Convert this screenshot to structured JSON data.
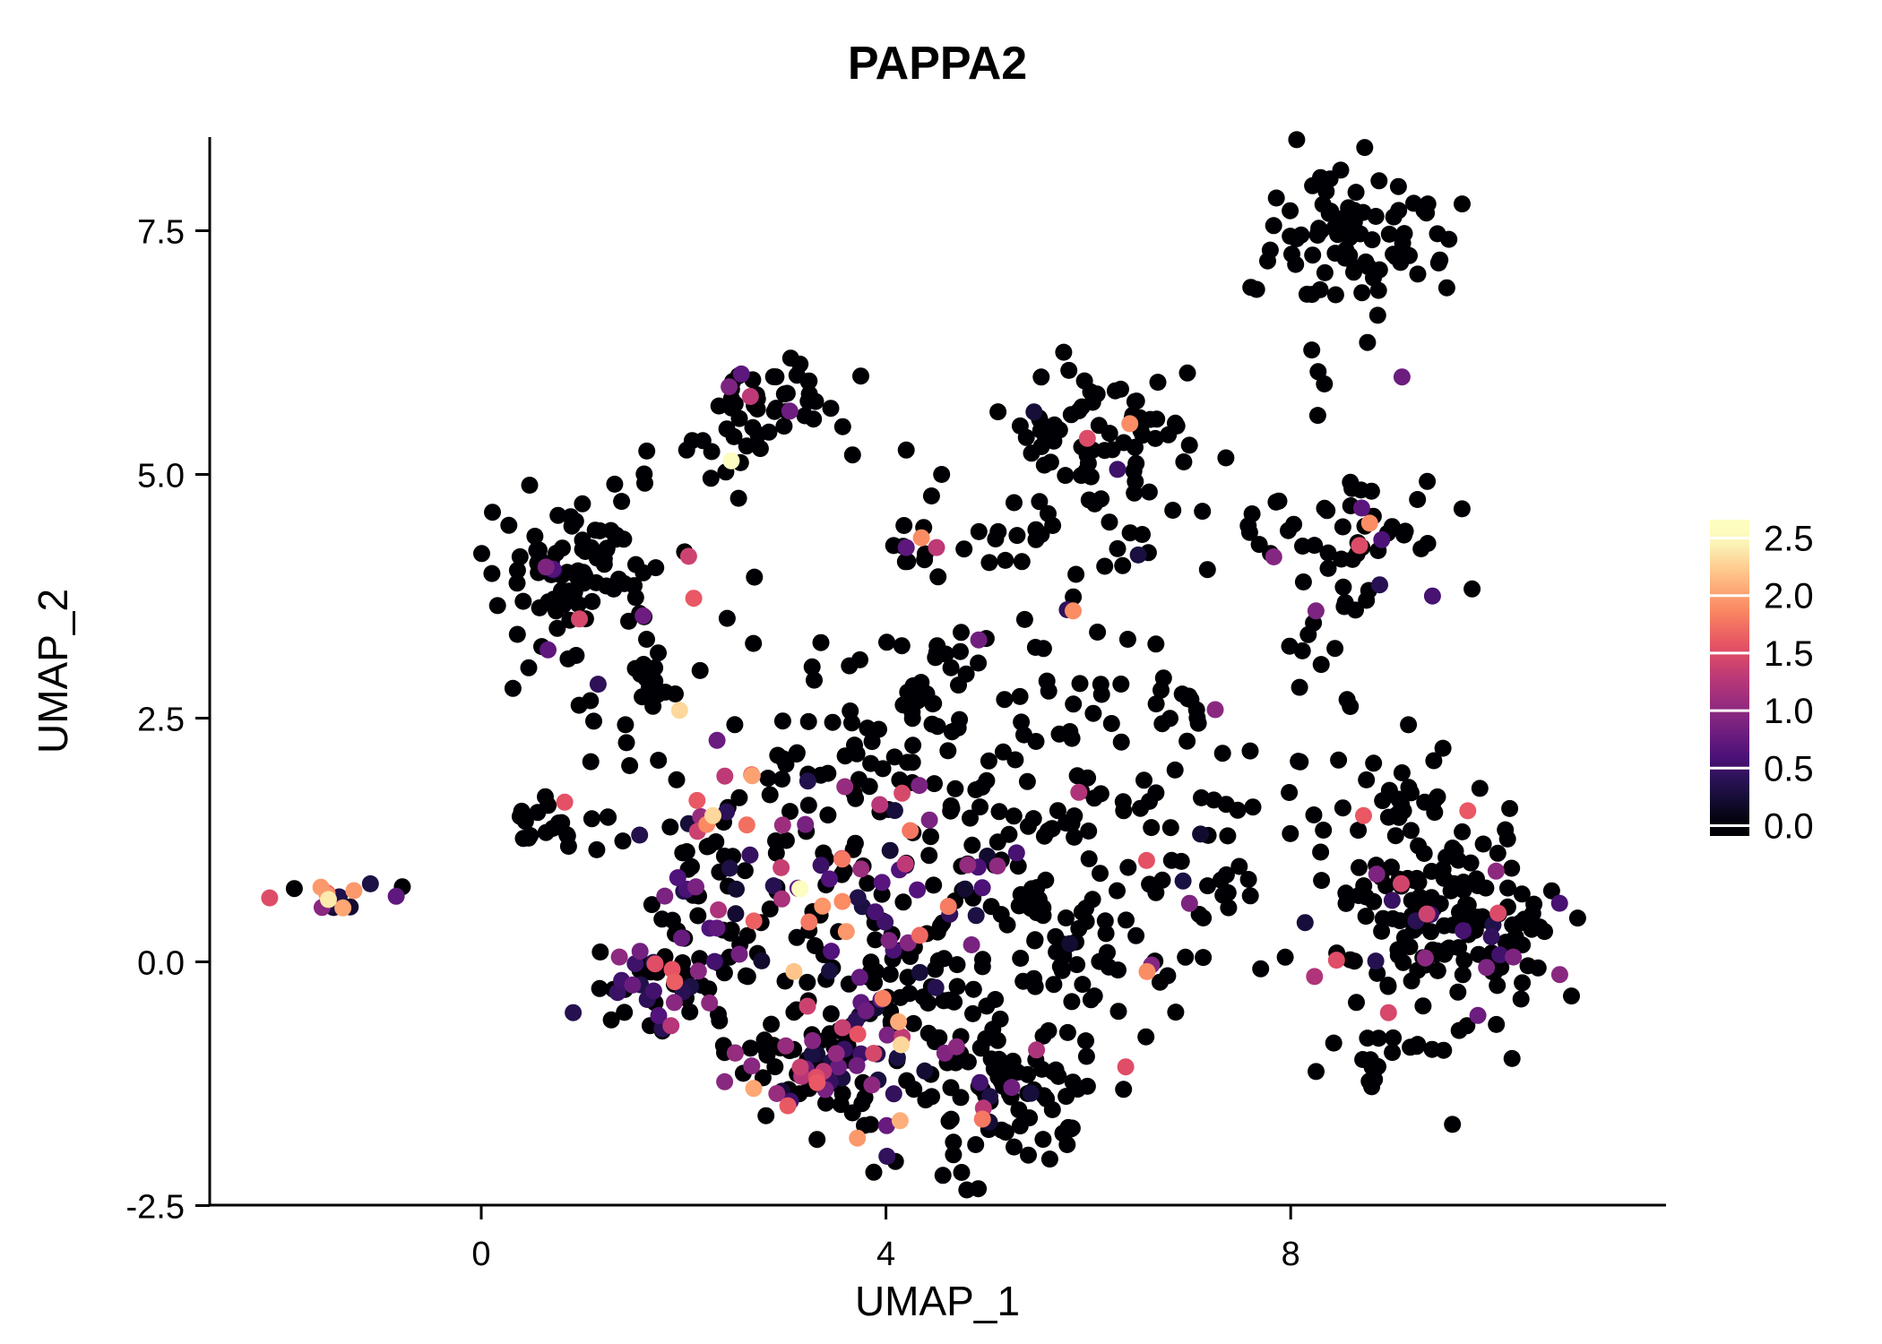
{
  "title": "PAPPA2",
  "chart_data": {
    "type": "scatter",
    "title": "PAPPA2",
    "xlabel": "UMAP_1",
    "ylabel": "UMAP_2",
    "xlim": [
      -2.6,
      11.9
    ],
    "ylim": [
      -2.5,
      8.5
    ],
    "grid": false,
    "legend_position": "right",
    "x_ticks": [
      {
        "value": 0,
        "label": "0"
      },
      {
        "value": 4,
        "label": "4"
      },
      {
        "value": 8,
        "label": "8"
      }
    ],
    "y_ticks": [
      {
        "value": -2.5,
        "label": "-2.5"
      },
      {
        "value": 0,
        "label": "0.0"
      },
      {
        "value": 2.5,
        "label": "2.5"
      },
      {
        "value": 5,
        "label": "5.0"
      },
      {
        "value": 7.5,
        "label": "7.5"
      }
    ],
    "legend": {
      "min": 0,
      "max": 2.5,
      "ticks": [
        {
          "value": 2.5,
          "label": "2.5"
        },
        {
          "value": 2.0,
          "label": "2.0"
        },
        {
          "value": 1.5,
          "label": "1.5"
        },
        {
          "value": 1.0,
          "label": "1.0"
        },
        {
          "value": 0.5,
          "label": "0.5"
        },
        {
          "value": 0.0,
          "label": "0.0"
        }
      ]
    },
    "color_scale": {
      "name": "magma",
      "domain": [
        0,
        2.5
      ],
      "stops": [
        [
          0,
          "#000004"
        ],
        [
          0.125,
          "#1d1147"
        ],
        [
          0.25,
          "#51127c"
        ],
        [
          0.375,
          "#822681"
        ],
        [
          0.5,
          "#b63679"
        ],
        [
          0.625,
          "#e65164"
        ],
        [
          0.75,
          "#fb8861"
        ],
        [
          0.875,
          "#fec287"
        ],
        [
          1,
          "#fcfdbf"
        ]
      ]
    },
    "seed": 7,
    "point_count_total": 1427,
    "clusters": [
      {
        "cx": -1.42,
        "cy": 0.68,
        "sx": 0.21,
        "sy": 0.1,
        "n": 14,
        "frac": 0.75,
        "vmax": 2.2
      },
      {
        "cx": 1.05,
        "cy": 3.95,
        "sx": 0.45,
        "sy": 0.5,
        "n": 95,
        "frac": 0.05,
        "vmax": 1.5
      },
      {
        "cx": 1.5,
        "cy": 2.7,
        "sx": 0.4,
        "sy": 0.3,
        "n": 20,
        "frac": 0.1,
        "vmax": 1.8
      },
      {
        "cx": 2.85,
        "cy": 5.7,
        "sx": 0.28,
        "sy": 0.26,
        "n": 42,
        "frac": 0.05,
        "vmax": 1.1
      },
      {
        "cx": 2.4,
        "cy": 5.1,
        "sx": 0.15,
        "sy": 0.25,
        "n": 7,
        "frac": 0.0,
        "vmax": 0
      },
      {
        "cx": 6.05,
        "cy": 5.4,
        "sx": 0.45,
        "sy": 0.45,
        "n": 72,
        "frac": 0.04,
        "vmax": 1.4
      },
      {
        "cx": 5.2,
        "cy": 4.35,
        "sx": 0.45,
        "sy": 0.25,
        "n": 16,
        "frac": 0.05,
        "vmax": 1.0
      },
      {
        "cx": 4.45,
        "cy": 4.25,
        "sx": 0.2,
        "sy": 0.15,
        "n": 10,
        "frac": 0.0,
        "vmax": 0
      },
      {
        "cx": 8.65,
        "cy": 7.5,
        "sx": 0.5,
        "sy": 0.33,
        "n": 75,
        "frac": 0.0,
        "vmax": 0
      },
      {
        "cx": 7.8,
        "cy": 6.8,
        "sx": 0.3,
        "sy": 0.2,
        "n": 5,
        "frac": 0.0,
        "vmax": 0
      },
      {
        "cx": 8.5,
        "cy": 5.8,
        "sx": 0.25,
        "sy": 0.25,
        "n": 5,
        "frac": 0.0,
        "vmax": 0
      },
      {
        "cx": 8.6,
        "cy": 4.3,
        "sx": 0.4,
        "sy": 0.35,
        "n": 48,
        "frac": 0.08,
        "vmax": 1.2
      },
      {
        "cx": 8.3,
        "cy": 3.1,
        "sx": 0.3,
        "sy": 0.3,
        "n": 8,
        "frac": 0.05,
        "vmax": 1.0
      },
      {
        "cx": 1.7,
        "cy": -0.25,
        "sx": 0.25,
        "sy": 0.28,
        "n": 45,
        "frac": 0.5,
        "vmax": 2.0
      },
      {
        "cx": 2.3,
        "cy": 1.0,
        "sx": 0.35,
        "sy": 0.7,
        "n": 80,
        "frac": 0.35,
        "vmax": 2.2
      },
      {
        "cx": 0.8,
        "cy": 1.45,
        "sx": 0.3,
        "sy": 0.18,
        "n": 22,
        "frac": 0.1,
        "vmax": 1.7
      },
      {
        "cx": 3.5,
        "cy": -1.1,
        "sx": 0.5,
        "sy": 0.35,
        "n": 110,
        "frac": 0.42,
        "vmax": 2.1
      },
      {
        "cx": 5.1,
        "cy": -1.25,
        "sx": 0.45,
        "sy": 0.35,
        "n": 85,
        "frac": 0.18,
        "vmax": 1.9
      },
      {
        "cx": 3.9,
        "cy": 0.5,
        "sx": 0.55,
        "sy": 0.65,
        "n": 120,
        "frac": 0.3,
        "vmax": 2.0
      },
      {
        "cx": 5.7,
        "cy": 0.5,
        "sx": 0.5,
        "sy": 0.75,
        "n": 120,
        "frac": 0.1,
        "vmax": 1.6
      },
      {
        "cx": 4.3,
        "cy": 2.1,
        "sx": 0.85,
        "sy": 0.35,
        "n": 70,
        "frac": 0.12,
        "vmax": 1.6
      },
      {
        "cx": 4.2,
        "cy": 3.15,
        "sx": 0.7,
        "sy": 0.3,
        "n": 25,
        "frac": 0.08,
        "vmax": 1.2
      },
      {
        "cx": 6.2,
        "cy": 2.8,
        "sx": 0.5,
        "sy": 0.4,
        "n": 20,
        "frac": 0.06,
        "vmax": 1.0
      },
      {
        "cx": 6.9,
        "cy": 1.4,
        "sx": 0.3,
        "sy": 0.7,
        "n": 30,
        "frac": 0.07,
        "vmax": 1.0
      },
      {
        "cx": 7.7,
        "cy": 1.5,
        "sx": 0.3,
        "sy": 0.45,
        "n": 14,
        "frac": 0.07,
        "vmax": 1.0
      },
      {
        "cx": 7.0,
        "cy": 2.65,
        "sx": 0.2,
        "sy": 0.2,
        "n": 6,
        "frac": 0.0,
        "vmax": 0
      },
      {
        "cx": 6.4,
        "cy": 4.1,
        "sx": 0.25,
        "sy": 0.25,
        "n": 6,
        "frac": 0.0,
        "vmax": 0
      },
      {
        "cx": 7.4,
        "cy": 4.3,
        "sx": 0.2,
        "sy": 0.2,
        "n": 5,
        "frac": 0.0,
        "vmax": 0
      },
      {
        "cx": 9.2,
        "cy": 0.5,
        "sx": 0.5,
        "sy": 0.55,
        "n": 110,
        "frac": 0.07,
        "vmax": 1.6
      },
      {
        "cx": 9.9,
        "cy": 0.3,
        "sx": 0.4,
        "sy": 0.5,
        "n": 65,
        "frac": 0.09,
        "vmax": 1.5
      },
      {
        "cx": 9.1,
        "cy": 1.6,
        "sx": 0.4,
        "sy": 0.2,
        "n": 20,
        "frac": 0.08,
        "vmax": 1.4
      },
      {
        "cx": 9.0,
        "cy": -1.0,
        "sx": 0.35,
        "sy": 0.22,
        "n": 16,
        "frac": 0.05,
        "vmax": 1.0
      }
    ],
    "highlight_points": [
      [
        -1.51,
        0.64,
        2.4
      ],
      [
        -0.78,
        0.77,
        0
      ],
      [
        0.64,
        4.05,
        0.9
      ],
      [
        0.66,
        3.2,
        0.7
      ],
      [
        1.6,
        3.55,
        0.8
      ],
      [
        2.05,
        4.16,
        1.4
      ],
      [
        2.1,
        3.73,
        1.6
      ],
      [
        1.96,
        2.58,
        2.3
      ],
      [
        2.47,
        5.14,
        2.5
      ],
      [
        2.45,
        5.9,
        0.9
      ],
      [
        2.57,
        6.03,
        0.7
      ],
      [
        2.66,
        5.8,
        1.3
      ],
      [
        3.05,
        5.65,
        0.8
      ],
      [
        3.67,
        5.2,
        0
      ],
      [
        4.2,
        5.25,
        0
      ],
      [
        4.55,
        5.0,
        0
      ],
      [
        4.35,
        4.35,
        1.9
      ],
      [
        4.5,
        4.25,
        1.3
      ],
      [
        4.2,
        4.25,
        0.7
      ],
      [
        5.99,
        5.37,
        1.5
      ],
      [
        6.41,
        5.52,
        1.9
      ],
      [
        5.85,
        3.6,
        1.9
      ],
      [
        6.98,
        6.04,
        0
      ],
      [
        7.36,
        5.17,
        0
      ],
      [
        9.1,
        6.0,
        0.8
      ],
      [
        8.78,
        4.5,
        1.9
      ],
      [
        8.68,
        4.27,
        1.5
      ],
      [
        8.9,
        4.33,
        0.6
      ],
      [
        8.25,
        3.6,
        0.9
      ],
      [
        2.29,
        1.5,
        2.3
      ],
      [
        3.15,
        0.75,
        2.5
      ],
      [
        3.09,
        -0.1,
        2.2
      ],
      [
        4.15,
        -0.85,
        2.3
      ],
      [
        6.58,
        -0.1,
        1.9
      ],
      [
        7.0,
        0.6,
        0.9
      ],
      [
        8.72,
        1.5,
        1.6
      ],
      [
        9.75,
        1.55,
        1.6
      ],
      [
        10.05,
        0.5,
        1.5
      ],
      [
        10.2,
        0.05,
        0.9
      ],
      [
        9.85,
        -0.55,
        0.8
      ],
      [
        8.85,
        0.9,
        0.9
      ]
    ]
  }
}
